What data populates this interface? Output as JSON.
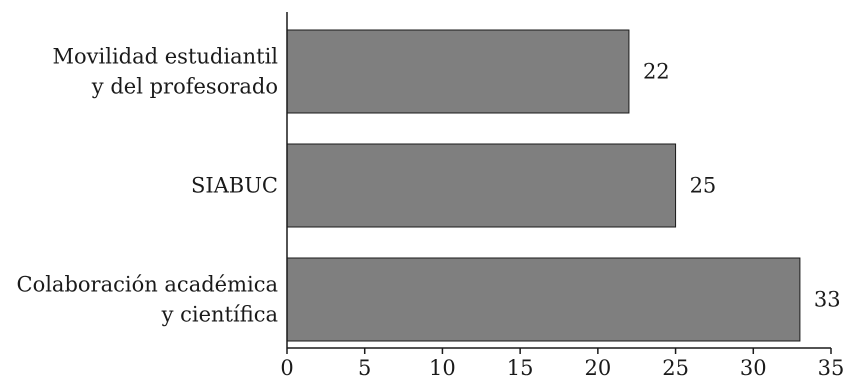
{
  "chart_data": {
    "type": "bar",
    "orientation": "horizontal",
    "title": "",
    "xlabel": "",
    "ylabel": "",
    "categories": [
      [
        "Movilidad estudiantil",
        "y del profesorado"
      ],
      [
        "SIABUC"
      ],
      [
        "Colaboración académica",
        "y científica"
      ]
    ],
    "values": [
      22,
      25,
      33
    ],
    "data_labels": [
      "22",
      "25",
      "33"
    ],
    "xlim": [
      0,
      35
    ],
    "xticks": [
      0,
      5,
      10,
      15,
      20,
      25,
      30,
      35
    ],
    "xtick_labels": [
      "0",
      "5",
      "10",
      "15",
      "20",
      "25",
      "30",
      "35"
    ],
    "grid": false,
    "legend": "none",
    "colors": {
      "bar": "#7f7f7f",
      "edge": "#1a1a1a"
    }
  }
}
